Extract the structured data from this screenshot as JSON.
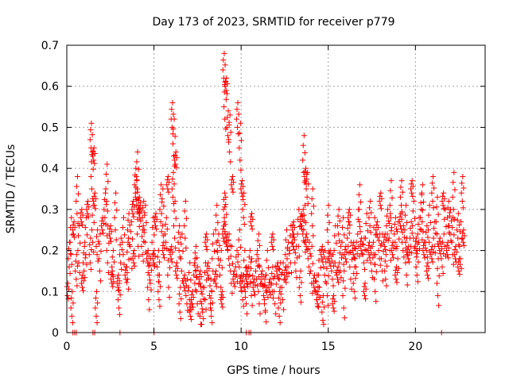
{
  "chart_data": {
    "type": "scatter",
    "title": "Day 173 of 2023, SRMTID for receiver p779",
    "xlabel": "GPS time / hours",
    "ylabel": "SRMTID / TECUs",
    "xlim": [
      0,
      24
    ],
    "ylim": [
      0,
      0.7
    ],
    "xticks": [
      0,
      5,
      10,
      15,
      20
    ],
    "xtick_labels": [
      "0",
      "5",
      "10",
      "15",
      "20"
    ],
    "yticks": [
      0,
      0.1,
      0.2,
      0.3,
      0.4,
      0.5,
      0.6,
      0.7
    ],
    "ytick_labels": [
      "0",
      "0.1",
      "0.2",
      "0.3",
      "0.4",
      "0.5",
      "0.6",
      "0.7"
    ],
    "grid": true,
    "marker": "+",
    "color": "#ff0000",
    "series": [
      {
        "name": "SRMTID",
        "x": [
          0.05,
          0.15,
          0.25,
          0.4,
          0.55,
          0.7,
          0.85,
          1.0,
          1.1,
          1.2,
          1.35,
          1.5,
          1.6,
          1.75,
          1.9,
          2.05,
          2.2,
          2.35,
          2.5,
          2.65,
          2.8,
          2.95,
          3.1,
          3.25,
          3.4,
          3.55,
          3.7,
          3.85,
          4.0,
          4.1,
          4.2,
          4.35,
          4.5,
          4.65,
          4.8,
          4.95,
          5.1,
          5.25,
          5.4,
          5.55,
          5.7,
          5.85,
          6.0,
          6.1,
          6.2,
          6.3,
          6.45,
          6.6,
          6.75,
          6.9,
          7.05,
          7.2,
          7.35,
          7.5,
          7.65,
          7.8,
          7.95,
          8.1,
          8.25,
          8.4,
          8.55,
          8.7,
          8.85,
          9.0,
          9.05,
          9.1,
          9.2,
          9.3,
          9.45,
          9.6,
          9.75,
          9.9,
          10.0,
          10.1,
          10.2,
          10.35,
          10.5,
          10.6,
          10.75,
          10.9,
          11.05,
          11.2,
          11.35,
          11.5,
          11.65,
          11.8,
          11.95,
          12.1,
          12.25,
          12.4,
          12.55,
          12.7,
          12.85,
          13.0,
          13.15,
          13.3,
          13.45,
          13.55,
          13.65,
          13.75,
          13.9,
          14.05,
          14.2,
          14.35,
          14.5,
          14.65,
          14.8,
          14.95,
          15.1,
          15.25,
          15.4,
          15.55,
          15.7,
          15.85,
          16.0,
          16.15,
          16.3,
          16.45,
          16.6,
          16.75,
          16.9,
          17.05,
          17.2,
          17.35,
          17.5,
          17.65,
          17.8,
          17.95,
          18.1,
          18.25,
          18.4,
          18.55,
          18.7,
          18.85,
          19.0,
          19.15,
          19.3,
          19.45,
          19.6,
          19.75,
          19.9,
          20.05,
          20.2,
          20.35,
          20.5,
          20.65,
          20.8,
          20.95,
          21.1,
          21.25,
          21.4,
          21.55,
          21.7,
          21.85,
          22.0,
          22.15,
          22.3,
          22.45,
          22.6,
          22.75,
          0.3,
          0.6,
          0.9,
          1.4,
          1.45,
          1.55,
          1.7,
          2.3,
          2.6,
          3.0,
          3.5,
          3.8,
          3.95,
          4.05,
          4.15,
          4.4,
          4.7,
          5.0,
          5.3,
          5.5,
          5.8,
          6.05,
          6.15,
          6.25,
          6.5,
          6.8,
          7.1,
          7.4,
          7.7,
          8.0,
          8.3,
          8.6,
          8.9,
          9.02,
          9.08,
          9.15,
          9.25,
          9.35,
          9.5,
          9.8,
          9.95,
          10.05,
          10.15,
          10.3,
          10.6,
          11.0,
          11.4,
          11.8,
          12.2,
          12.6,
          13.0,
          13.4,
          13.6,
          13.7,
          13.8,
          14.1,
          14.4,
          14.7,
          15.0,
          15.3,
          15.6,
          15.9,
          16.2,
          16.5,
          16.8,
          17.1,
          17.4,
          17.7,
          18.0,
          18.3,
          18.6,
          18.9,
          19.2,
          19.5,
          19.8,
          20.1,
          20.4,
          20.7,
          21.0,
          21.3,
          21.6,
          21.9,
          22.2,
          22.5,
          22.7
        ],
        "y": [
          0.1,
          0.18,
          0.22,
          0.25,
          0.15,
          0.2,
          0.28,
          0.17,
          0.22,
          0.3,
          0.19,
          0.25,
          0.32,
          0.21,
          0.18,
          0.26,
          0.3,
          0.2,
          0.24,
          0.16,
          0.28,
          0.12,
          0.19,
          0.22,
          0.14,
          0.25,
          0.21,
          0.18,
          0.33,
          0.24,
          0.29,
          0.21,
          0.25,
          0.18,
          0.14,
          0.22,
          0.27,
          0.16,
          0.3,
          0.2,
          0.24,
          0.14,
          0.19,
          0.35,
          0.26,
          0.15,
          0.22,
          0.18,
          0.12,
          0.09,
          0.11,
          0.08,
          0.14,
          0.1,
          0.13,
          0.07,
          0.11,
          0.15,
          0.09,
          0.18,
          0.13,
          0.2,
          0.14,
          0.24,
          0.3,
          0.27,
          0.22,
          0.2,
          0.15,
          0.13,
          0.16,
          0.19,
          0.12,
          0.1,
          0.14,
          0.13,
          0.16,
          0.12,
          0.11,
          0.15,
          0.1,
          0.13,
          0.09,
          0.14,
          0.11,
          0.12,
          0.1,
          0.15,
          0.13,
          0.11,
          0.14,
          0.18,
          0.2,
          0.22,
          0.17,
          0.24,
          0.27,
          0.26,
          0.25,
          0.22,
          0.18,
          0.15,
          0.12,
          0.1,
          0.14,
          0.19,
          0.16,
          0.12,
          0.18,
          0.15,
          0.2,
          0.14,
          0.17,
          0.22,
          0.19,
          0.23,
          0.16,
          0.2,
          0.18,
          0.24,
          0.21,
          0.19,
          0.23,
          0.2,
          0.17,
          0.22,
          0.25,
          0.2,
          0.18,
          0.22,
          0.26,
          0.23,
          0.2,
          0.24,
          0.21,
          0.27,
          0.22,
          0.25,
          0.19,
          0.23,
          0.26,
          0.21,
          0.24,
          0.28,
          0.2,
          0.22,
          0.25,
          0.19,
          0.23,
          0.27,
          0.21,
          0.18,
          0.24,
          0.2,
          0.26,
          0.22,
          0.19,
          0.25,
          0.21,
          0.23,
          0.06,
          0.32,
          0.12,
          0.47,
          0.38,
          0.43,
          0.06,
          0.35,
          0.13,
          0.08,
          0.16,
          0.3,
          0.36,
          0.38,
          0.31,
          0.28,
          0.11,
          0.18,
          0.1,
          0.29,
          0.36,
          0.52,
          0.46,
          0.42,
          0.07,
          0.26,
          0.05,
          0.17,
          0.04,
          0.22,
          0.06,
          0.25,
          0.08,
          0.64,
          0.55,
          0.6,
          0.5,
          0.47,
          0.36,
          0.52,
          0.45,
          0.35,
          0.3,
          0.1,
          0.27,
          0.2,
          0.08,
          0.22,
          0.06,
          0.19,
          0.25,
          0.11,
          0.42,
          0.38,
          0.35,
          0.29,
          0.08,
          0.05,
          0.25,
          0.07,
          0.26,
          0.09,
          0.28,
          0.12,
          0.3,
          0.1,
          0.28,
          0.13,
          0.32,
          0.15,
          0.31,
          0.14,
          0.33,
          0.17,
          0.35,
          0.16,
          0.3,
          0.15,
          0.34,
          0.12,
          0.32,
          0.28,
          0.33,
          0.16,
          0.34
        ],
        "zero_points_x": [
          0.35,
          0.45,
          0.55,
          1.5,
          1.6,
          3.05,
          5.0,
          10.3,
          10.45,
          10.55,
          21.5
        ]
      }
    ]
  }
}
